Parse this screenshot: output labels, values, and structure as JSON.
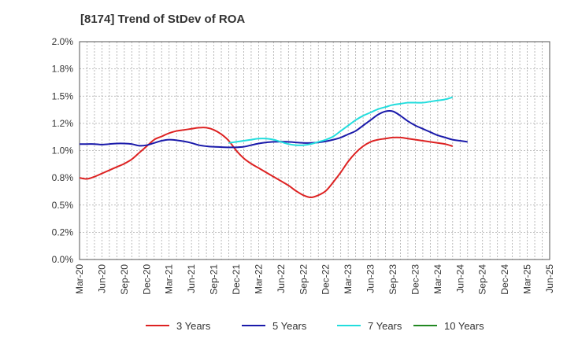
{
  "chart_data": {
    "type": "line",
    "title": "[8174]  Trend of StDev of ROA",
    "xlabel": "",
    "ylabel": "",
    "x_tick_labels": [
      "Mar-20",
      "Jun-20",
      "Sep-20",
      "Dec-20",
      "Mar-21",
      "Jun-21",
      "Sep-21",
      "Dec-21",
      "Mar-22",
      "Jun-22",
      "Sep-22",
      "Dec-22",
      "Mar-23",
      "Jun-23",
      "Sep-23",
      "Dec-23",
      "Mar-24",
      "Jun-24",
      "Sep-24",
      "Dec-24",
      "Mar-25",
      "Jun-25"
    ],
    "y_tick_labels": [
      "0.0%",
      "0.2%",
      "0.5%",
      "0.8%",
      "1.0%",
      "1.2%",
      "1.5%",
      "1.8%",
      "2.0%"
    ],
    "ylim": [
      0,
      2.0
    ],
    "y_unit": "%",
    "grid": true,
    "legend_position": "bottom",
    "series": [
      {
        "name": "3 Years",
        "color": "#dd2222",
        "x_start_index": 0,
        "values": [
          0.75,
          0.74,
          0.76,
          0.79,
          0.82,
          0.85,
          0.88,
          0.92,
          0.98,
          1.04,
          1.1,
          1.13,
          1.16,
          1.18,
          1.19,
          1.2,
          1.21,
          1.21,
          1.19,
          1.15,
          1.09,
          1.0,
          0.93,
          0.88,
          0.84,
          0.8,
          0.76,
          0.72,
          0.68,
          0.63,
          0.59,
          0.57,
          0.59,
          0.63,
          0.71,
          0.8,
          0.9,
          0.98,
          1.04,
          1.08,
          1.1,
          1.11,
          1.12,
          1.12,
          1.11,
          1.1,
          1.09,
          1.08,
          1.07,
          1.06,
          1.04
        ]
      },
      {
        "name": "5 Years",
        "color": "#1a1aaa",
        "x_start_index": 0,
        "values": [
          1.06,
          1.06,
          1.06,
          1.055,
          1.06,
          1.065,
          1.065,
          1.06,
          1.045,
          1.05,
          1.07,
          1.09,
          1.1,
          1.095,
          1.085,
          1.07,
          1.05,
          1.04,
          1.035,
          1.032,
          1.03,
          1.03,
          1.035,
          1.05,
          1.065,
          1.075,
          1.08,
          1.082,
          1.08,
          1.075,
          1.07,
          1.07,
          1.075,
          1.085,
          1.1,
          1.12,
          1.15,
          1.18,
          1.23,
          1.28,
          1.33,
          1.36,
          1.36,
          1.32,
          1.27,
          1.23,
          1.2,
          1.17,
          1.14,
          1.12,
          1.1,
          1.09,
          1.08
        ]
      },
      {
        "name": "7 Years",
        "color": "#22dddd",
        "x_start_index": 20,
        "values": [
          1.07,
          1.08,
          1.09,
          1.1,
          1.11,
          1.11,
          1.1,
          1.08,
          1.06,
          1.05,
          1.05,
          1.06,
          1.08,
          1.1,
          1.13,
          1.18,
          1.23,
          1.28,
          1.32,
          1.35,
          1.38,
          1.4,
          1.42,
          1.43,
          1.44,
          1.44,
          1.44,
          1.45,
          1.46,
          1.47,
          1.49
        ]
      },
      {
        "name": "10 Years",
        "color": "#228822",
        "x_start_index": 0,
        "values": []
      }
    ]
  }
}
